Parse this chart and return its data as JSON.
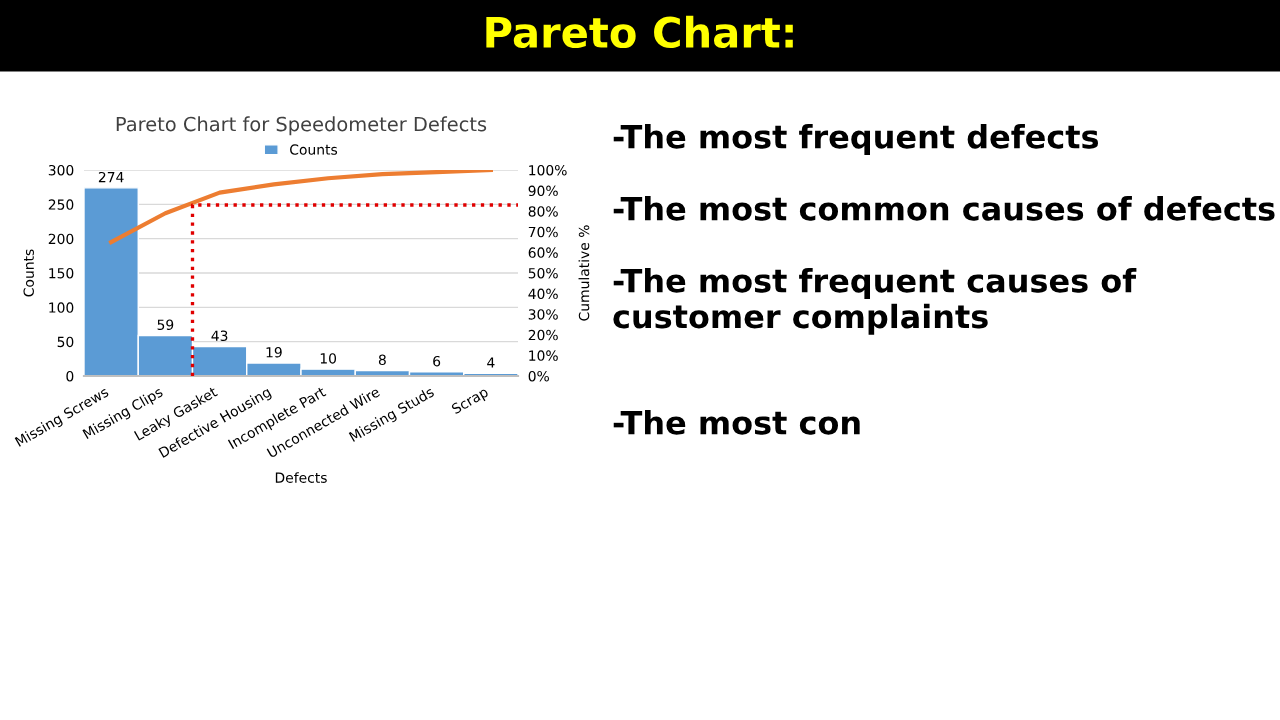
{
  "chart_data": {
    "type": "bar",
    "title": "Pareto Chart for Speedometer Defects",
    "xlabel": "Defects",
    "ylabel": "Counts",
    "y2label": "Cumulative %",
    "categories": [
      "Missing Screws",
      "Missing Clips",
      "Leaky Gasket",
      "Defective Housing",
      "Incomplete Part",
      "Unconnected Wire",
      "Missing Studs",
      "Scrap"
    ],
    "series": [
      {
        "name": "Counts",
        "color": "#5b9bd5",
        "values": [
          274,
          59,
          43,
          19,
          10,
          8,
          6,
          4
        ],
        "value_labels": [
          "274",
          "59",
          "43",
          "19",
          "10",
          "8",
          "6",
          "4"
        ]
      },
      {
        "type": "line",
        "axis": "y2",
        "color": "#ed7d31",
        "values": [
          65,
          79,
          89,
          93,
          96,
          98,
          99,
          100
        ]
      }
    ],
    "legend": "top",
    "grid": "y",
    "marker": "none",
    "line_style": "solid",
    "ylim": [
      0,
      300
    ],
    "yticks": [
      0,
      50,
      100,
      150,
      200,
      250,
      300
    ],
    "y2lim": [
      0,
      100
    ],
    "y2ticks": [
      {
        "value": 0,
        "label": "0%"
      },
      {
        "value": 10,
        "label": "10%"
      },
      {
        "value": 20,
        "label": "20%"
      },
      {
        "value": 30,
        "label": "30%"
      },
      {
        "value": 40,
        "label": "40%"
      },
      {
        "value": 50,
        "label": "50%"
      },
      {
        "value": 60,
        "label": "60%"
      },
      {
        "value": 70,
        "label": "70%"
      },
      {
        "value": 80,
        "label": "80%"
      },
      {
        "value": 90,
        "label": "90%"
      },
      {
        "value": 100,
        "label": "100%"
      }
    ],
    "ref_lines": [
      {
        "axis": "y2",
        "value": 83,
        "color": "#e00000",
        "line_style": "dotted"
      }
    ],
    "annotations": [
      "Pareto Chart:",
      "-The most frequent defects",
      "-The most common causes of defects",
      "-The most frequent causes of customer complaints",
      "-The most con"
    ]
  }
}
